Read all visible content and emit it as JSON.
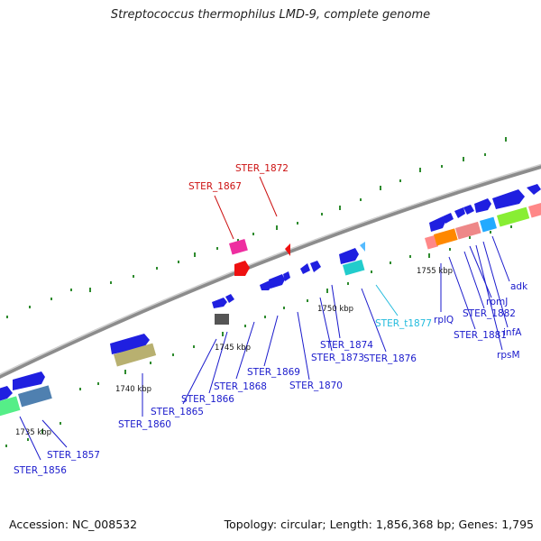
{
  "title": "Streptococcus thermophilus LMD-9, complete genome",
  "footer": {
    "accession": "Accession: NC_008532",
    "summary": "Topology: circular; Length: 1,856,368 bp; Genes: 1,795"
  },
  "colors": {
    "background": "#ffffff",
    "backbone": "#8c8c8c",
    "tick": "#2e8b2e",
    "gene_label": "#1a1acc",
    "highlight_label": "#cc1111",
    "trna_label": "#22bbdd"
  },
  "scale_labels": [
    "1735 kbp",
    "1740 kbp",
    "1745 kbp",
    "1750 kbp",
    "1755 kbp"
  ],
  "gene_labels": [
    {
      "text": "STER_1856",
      "color": "blue"
    },
    {
      "text": "STER_1857",
      "color": "blue"
    },
    {
      "text": "STER_1860",
      "color": "blue"
    },
    {
      "text": "STER_1865",
      "color": "blue"
    },
    {
      "text": "STER_1866",
      "color": "blue"
    },
    {
      "text": "STER_1867",
      "color": "red"
    },
    {
      "text": "STER_1868",
      "color": "blue"
    },
    {
      "text": "STER_1869",
      "color": "blue"
    },
    {
      "text": "STER_1870",
      "color": "blue"
    },
    {
      "text": "STER_1872",
      "color": "red"
    },
    {
      "text": "STER_1873",
      "color": "blue"
    },
    {
      "text": "STER_1874",
      "color": "blue"
    },
    {
      "text": "STER_1876",
      "color": "blue"
    },
    {
      "text": "STER_t1877",
      "color": "cyan"
    },
    {
      "text": "rplQ",
      "color": "blue"
    },
    {
      "text": "STER_1881",
      "color": "blue"
    },
    {
      "text": "STER_1882",
      "color": "blue"
    },
    {
      "text": "rpmJ",
      "color": "blue"
    },
    {
      "text": "adk",
      "color": "blue"
    },
    {
      "text": "infA",
      "color": "blue"
    },
    {
      "text": "rpsM",
      "color": "blue"
    }
  ]
}
